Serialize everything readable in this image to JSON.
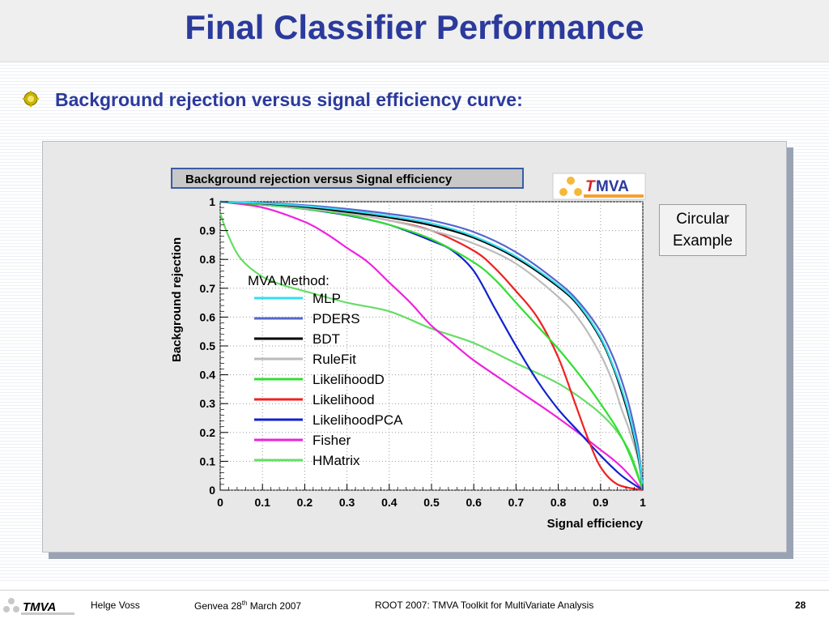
{
  "slide": {
    "title": "Final Classifier Performance",
    "bullet": "Background rejection versus signal efficiency curve:"
  },
  "logo": {
    "text_t": "T",
    "text_rest": "MVA"
  },
  "note": {
    "line1": "Circular",
    "line2": "Example"
  },
  "footer": {
    "author": "Helge Voss",
    "location_prefix": "Genvea  28",
    "location_sup": "th",
    "location_suffix": " March 2007",
    "conference": "ROOT 2007:   TMVA Toolkit for MultiVariate Analysis",
    "page": "28",
    "logo_text": "TMVA"
  },
  "chart_data": {
    "type": "line",
    "title": "Background rejection versus Signal efficiency",
    "xlabel": "Signal efficiency",
    "ylabel": "Background rejection",
    "xlim": [
      0,
      1
    ],
    "ylim": [
      0,
      1
    ],
    "xticks": [
      "0",
      "0.1",
      "0.2",
      "0.3",
      "0.4",
      "0.5",
      "0.6",
      "0.7",
      "0.8",
      "0.9",
      "1"
    ],
    "yticks": [
      "0",
      "0.1",
      "0.2",
      "0.3",
      "0.4",
      "0.5",
      "0.6",
      "0.7",
      "0.8",
      "0.9",
      "1"
    ],
    "grid": true,
    "legend_title": "MVA Method:",
    "legend_position": "center-left",
    "series": [
      {
        "name": "MLP",
        "color": "#33ddee",
        "points": [
          [
            0,
            1
          ],
          [
            0.1,
            0.995
          ],
          [
            0.2,
            0.985
          ],
          [
            0.3,
            0.97
          ],
          [
            0.4,
            0.95
          ],
          [
            0.5,
            0.925
          ],
          [
            0.6,
            0.88
          ],
          [
            0.7,
            0.81
          ],
          [
            0.8,
            0.71
          ],
          [
            0.85,
            0.64
          ],
          [
            0.9,
            0.53
          ],
          [
            0.93,
            0.43
          ],
          [
            0.95,
            0.35
          ],
          [
            0.97,
            0.25
          ],
          [
            0.99,
            0.12
          ],
          [
            1,
            0
          ]
        ]
      },
      {
        "name": "PDERS",
        "color": "#5566cc",
        "points": [
          [
            0,
            1
          ],
          [
            0.1,
            0.996
          ],
          [
            0.2,
            0.988
          ],
          [
            0.3,
            0.975
          ],
          [
            0.4,
            0.958
          ],
          [
            0.5,
            0.935
          ],
          [
            0.6,
            0.895
          ],
          [
            0.7,
            0.825
          ],
          [
            0.8,
            0.72
          ],
          [
            0.85,
            0.65
          ],
          [
            0.9,
            0.55
          ],
          [
            0.93,
            0.46
          ],
          [
            0.95,
            0.38
          ],
          [
            0.97,
            0.28
          ],
          [
            0.99,
            0.14
          ],
          [
            1,
            0
          ]
        ]
      },
      {
        "name": "BDT",
        "color": "#000000",
        "points": [
          [
            0,
            1
          ],
          [
            0.1,
            0.994
          ],
          [
            0.2,
            0.982
          ],
          [
            0.3,
            0.965
          ],
          [
            0.4,
            0.945
          ],
          [
            0.5,
            0.918
          ],
          [
            0.6,
            0.875
          ],
          [
            0.7,
            0.805
          ],
          [
            0.8,
            0.705
          ],
          [
            0.85,
            0.635
          ],
          [
            0.9,
            0.525
          ],
          [
            0.93,
            0.425
          ],
          [
            0.95,
            0.34
          ],
          [
            0.97,
            0.24
          ],
          [
            0.99,
            0.11
          ],
          [
            1,
            0
          ]
        ]
      },
      {
        "name": "RuleFit",
        "color": "#bbbbbb",
        "points": [
          [
            0,
            1
          ],
          [
            0.1,
            0.993
          ],
          [
            0.2,
            0.978
          ],
          [
            0.3,
            0.96
          ],
          [
            0.4,
            0.935
          ],
          [
            0.5,
            0.9
          ],
          [
            0.6,
            0.855
          ],
          [
            0.7,
            0.785
          ],
          [
            0.8,
            0.67
          ],
          [
            0.85,
            0.59
          ],
          [
            0.9,
            0.47
          ],
          [
            0.93,
            0.37
          ],
          [
            0.95,
            0.28
          ],
          [
            0.97,
            0.2
          ],
          [
            0.99,
            0.1
          ],
          [
            1,
            0
          ]
        ]
      },
      {
        "name": "LikelihoodD",
        "color": "#33dd33",
        "points": [
          [
            0,
            1
          ],
          [
            0.1,
            0.99
          ],
          [
            0.2,
            0.975
          ],
          [
            0.3,
            0.955
          ],
          [
            0.4,
            0.92
          ],
          [
            0.5,
            0.87
          ],
          [
            0.6,
            0.79
          ],
          [
            0.65,
            0.73
          ],
          [
            0.7,
            0.65
          ],
          [
            0.75,
            0.57
          ],
          [
            0.8,
            0.49
          ],
          [
            0.85,
            0.4
          ],
          [
            0.9,
            0.3
          ],
          [
            0.94,
            0.21
          ],
          [
            0.97,
            0.12
          ],
          [
            1,
            0
          ]
        ]
      },
      {
        "name": "Likelihood",
        "color": "#ee2222",
        "points": [
          [
            0,
            1
          ],
          [
            0.1,
            0.99
          ],
          [
            0.2,
            0.978
          ],
          [
            0.3,
            0.96
          ],
          [
            0.4,
            0.935
          ],
          [
            0.5,
            0.9
          ],
          [
            0.6,
            0.83
          ],
          [
            0.65,
            0.77
          ],
          [
            0.7,
            0.69
          ],
          [
            0.75,
            0.6
          ],
          [
            0.8,
            0.46
          ],
          [
            0.84,
            0.3
          ],
          [
            0.87,
            0.18
          ],
          [
            0.9,
            0.08
          ],
          [
            0.94,
            0.02
          ],
          [
            1,
            0
          ]
        ]
      },
      {
        "name": "LikelihoodPCA",
        "color": "#1122cc",
        "points": [
          [
            0,
            1
          ],
          [
            0.1,
            0.99
          ],
          [
            0.2,
            0.975
          ],
          [
            0.3,
            0.953
          ],
          [
            0.4,
            0.92
          ],
          [
            0.5,
            0.865
          ],
          [
            0.55,
            0.83
          ],
          [
            0.6,
            0.76
          ],
          [
            0.65,
            0.63
          ],
          [
            0.7,
            0.5
          ],
          [
            0.75,
            0.38
          ],
          [
            0.8,
            0.28
          ],
          [
            0.85,
            0.2
          ],
          [
            0.9,
            0.12
          ],
          [
            0.95,
            0.05
          ],
          [
            1,
            0
          ]
        ]
      },
      {
        "name": "Fisher",
        "color": "#ee22dd",
        "points": [
          [
            0,
            1
          ],
          [
            0.1,
            0.98
          ],
          [
            0.2,
            0.93
          ],
          [
            0.25,
            0.89
          ],
          [
            0.3,
            0.84
          ],
          [
            0.35,
            0.79
          ],
          [
            0.4,
            0.72
          ],
          [
            0.45,
            0.65
          ],
          [
            0.5,
            0.57
          ],
          [
            0.55,
            0.51
          ],
          [
            0.6,
            0.45
          ],
          [
            0.7,
            0.35
          ],
          [
            0.8,
            0.25
          ],
          [
            0.9,
            0.14
          ],
          [
            0.95,
            0.08
          ],
          [
            1,
            0
          ]
        ]
      },
      {
        "name": "HMatrix",
        "color": "#66dd66",
        "points": [
          [
            0,
            0.96
          ],
          [
            0.02,
            0.88
          ],
          [
            0.05,
            0.8
          ],
          [
            0.1,
            0.74
          ],
          [
            0.15,
            0.71
          ],
          [
            0.2,
            0.69
          ],
          [
            0.3,
            0.65
          ],
          [
            0.4,
            0.62
          ],
          [
            0.5,
            0.56
          ],
          [
            0.6,
            0.51
          ],
          [
            0.7,
            0.44
          ],
          [
            0.8,
            0.37
          ],
          [
            0.88,
            0.29
          ],
          [
            0.93,
            0.22
          ],
          [
            0.97,
            0.13
          ],
          [
            1,
            0
          ]
        ]
      }
    ]
  }
}
